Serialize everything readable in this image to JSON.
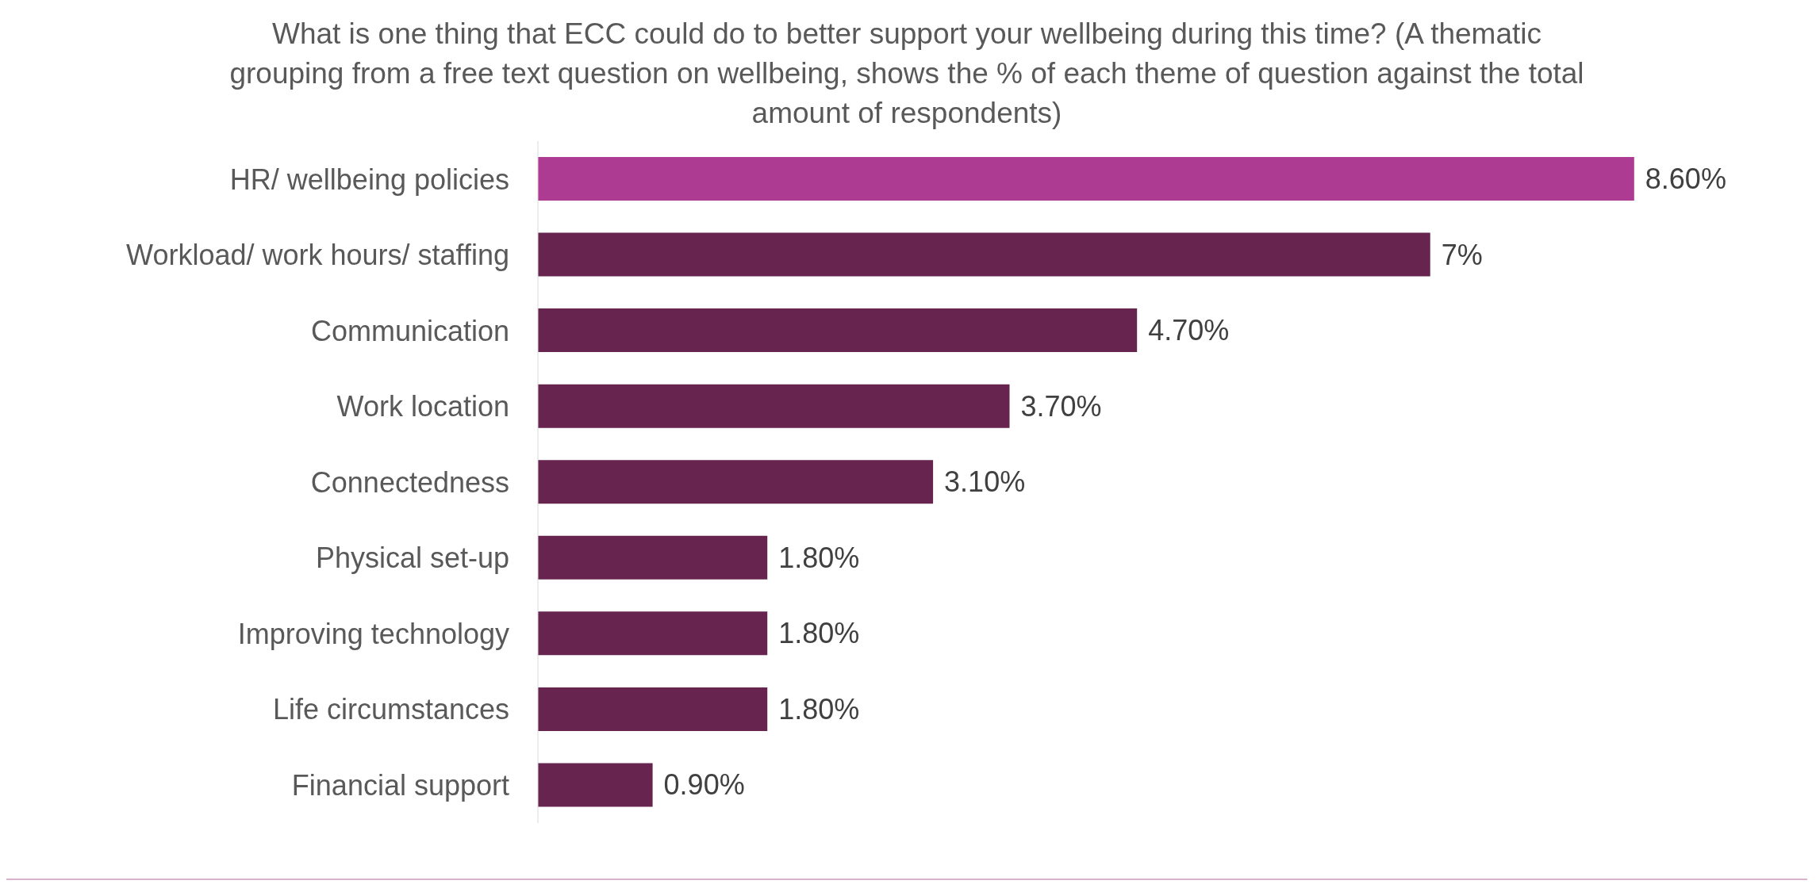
{
  "chart_data": {
    "type": "bar",
    "orientation": "horizontal",
    "title": "What is one thing that ECC could do to better support your wellbeing during this time? (A thematic grouping from a free text question on wellbeing, shows the % of each theme of question against the total amount of respondents)",
    "categories": [
      "HR/ wellbeing policies",
      "Workload/ work hours/ staffing",
      "Communication",
      "Work location",
      "Connectedness",
      "Physical set-up",
      "Improving technology",
      "Life circumstances",
      "Financial support"
    ],
    "values": [
      8.6,
      7,
      4.7,
      3.7,
      3.1,
      1.8,
      1.8,
      1.8,
      0.9
    ],
    "value_labels": [
      "8.60%",
      "7%",
      "4.70%",
      "3.70%",
      "3.10%",
      "1.80%",
      "1.80%",
      "1.80%",
      "0.90%"
    ],
    "colors": [
      "#ae3b92",
      "#66244f",
      "#66244f",
      "#66244f",
      "#66244f",
      "#66244f",
      "#66244f",
      "#66244f",
      "#66244f"
    ],
    "grid": false,
    "legend": false
  }
}
